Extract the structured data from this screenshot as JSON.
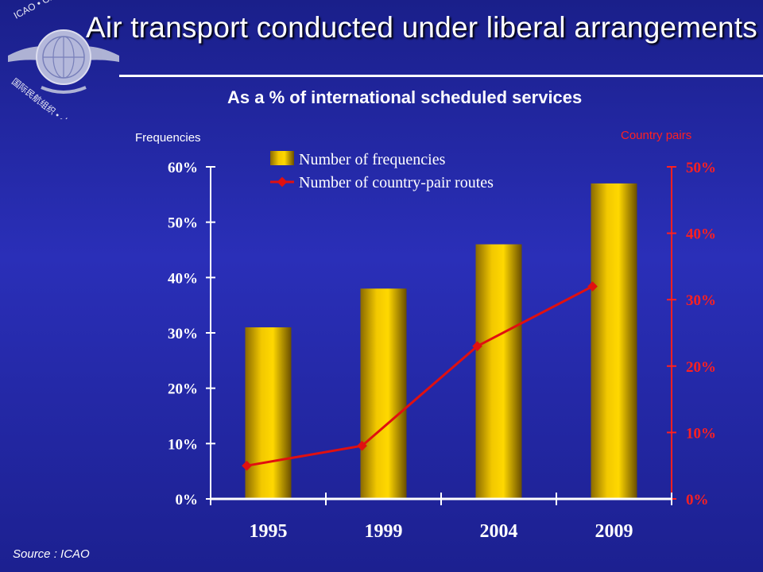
{
  "title": "Air transport conducted under liberal arrangements",
  "subtitle": "As a % of international scheduled services",
  "source": "Source :  ICAO",
  "logo": {
    "icon": "icao-emblem-icon",
    "ring_text": "ICAO • OACI • ИКАО",
    "ring_text_2": "国际民航组织 • ايكاو"
  },
  "colors": {
    "bar": "#f0c000",
    "line": "#e01010",
    "background": "#2228a8",
    "right_axis": "#ff2020"
  },
  "chart_data": {
    "type": "bar",
    "categories": [
      "1995",
      "1999",
      "2004",
      "2009"
    ],
    "xlabel": "",
    "ylabel": "Frequencies",
    "ylabel_right": "Country pairs",
    "ylim": [
      0,
      60
    ],
    "ylim_right": [
      0,
      50
    ],
    "yticks": [
      "0%",
      "10%",
      "20%",
      "30%",
      "40%",
      "50%",
      "60%"
    ],
    "yticks_right": [
      "0%",
      "10%",
      "20%",
      "30%",
      "40%",
      "50%"
    ],
    "grid": false,
    "legend_position": "top-center",
    "series": [
      {
        "name": "Number of frequencies",
        "type": "bar",
        "axis": "left",
        "values": [
          31,
          38,
          46,
          57
        ]
      },
      {
        "name": "Number of country-pair routes",
        "type": "line",
        "axis": "right",
        "values": [
          5,
          8,
          23,
          32
        ]
      }
    ]
  }
}
